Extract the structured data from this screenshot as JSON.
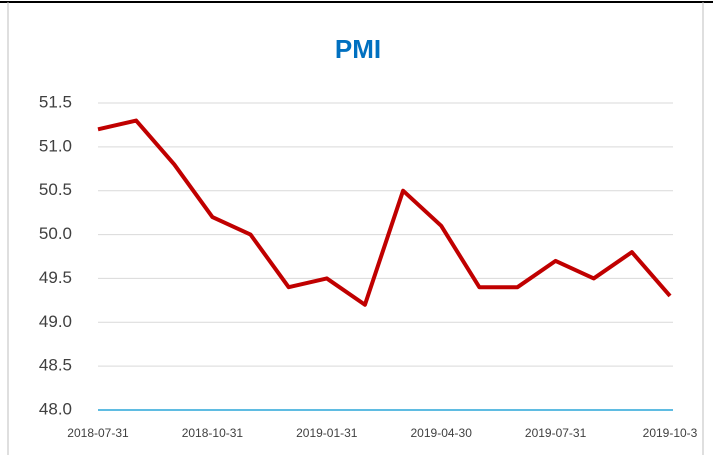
{
  "chart_data": {
    "type": "line",
    "title": "PMI",
    "categories": [
      "2018-07-31",
      null,
      null,
      "2018-10-31",
      null,
      null,
      "2019-01-31",
      null,
      null,
      "2019-04-30",
      null,
      null,
      "2019-07-31",
      null,
      null,
      "2019-10-3"
    ],
    "series": [
      {
        "name": "PMI",
        "color": "#c00000",
        "values": [
          51.2,
          51.3,
          50.8,
          50.2,
          50.0,
          49.4,
          49.5,
          49.2,
          50.5,
          50.1,
          49.4,
          49.4,
          49.7,
          49.5,
          49.8,
          49.3
        ]
      }
    ],
    "ylim": [
      48.0,
      51.5
    ],
    "yticks": [
      {
        "value": 48,
        "label": "48.0"
      },
      48.5,
      {
        "value": 49,
        "label": "49.0"
      },
      49.5,
      {
        "value": 50,
        "label": "50.0"
      },
      50.5,
      {
        "value": 51,
        "label": "51.0"
      },
      51.5
    ],
    "grid": true
  }
}
